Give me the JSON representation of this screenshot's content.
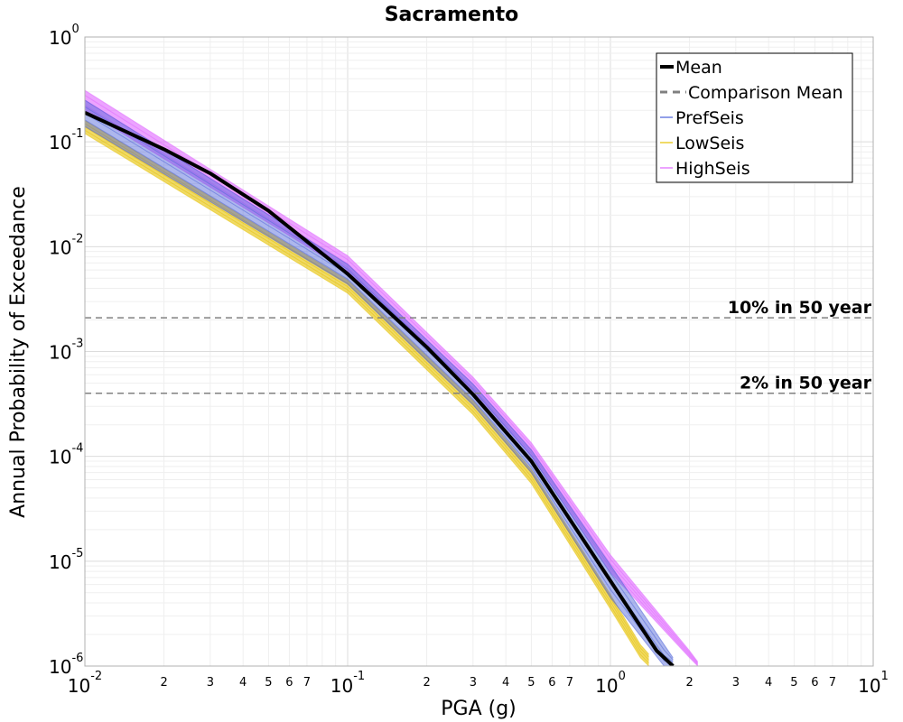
{
  "chart_data": {
    "type": "line",
    "title": "Sacramento",
    "xlabel": "PGA (g)",
    "ylabel": "Annual Probability of Exceedance",
    "x_scale": "log",
    "y_scale": "log",
    "xlim": [
      0.01,
      10
    ],
    "ylim": [
      1e-06,
      1
    ],
    "grid": true,
    "legend_position": "top-right",
    "x_major_ticks": [
      {
        "base": "10",
        "exp": "-2"
      },
      {
        "base": "10",
        "exp": "-1"
      },
      {
        "base": "10",
        "exp": "0"
      },
      {
        "base": "10",
        "exp": "1"
      }
    ],
    "y_major_ticks": [
      {
        "base": "10",
        "exp": "0"
      },
      {
        "base": "10",
        "exp": "-1"
      },
      {
        "base": "10",
        "exp": "-2"
      },
      {
        "base": "10",
        "exp": "-3"
      },
      {
        "base": "10",
        "exp": "-4"
      },
      {
        "base": "10",
        "exp": "-5"
      },
      {
        "base": "10",
        "exp": "-6"
      }
    ],
    "x_minor_tick_labels": [
      "2",
      "3",
      "4",
      "5",
      "6",
      "7"
    ],
    "series": [
      {
        "name": "Mean",
        "color": "#000000",
        "style": "solid",
        "x": [
          0.01,
          0.02,
          0.03,
          0.05,
          0.1,
          0.2,
          0.3,
          0.5,
          1.0,
          1.5,
          1.73
        ],
        "y": [
          0.19,
          0.085,
          0.05,
          0.022,
          0.0055,
          0.0011,
          0.00039,
          9e-05,
          6.5e-06,
          1.4e-06,
          1e-06
        ]
      },
      {
        "name": "Comparison Mean",
        "color": "#808080",
        "style": "dashed",
        "x": [],
        "y": []
      },
      {
        "name": "PrefSeis",
        "color": "#4a5fd8",
        "style": "band",
        "x": [
          0.01,
          0.1,
          0.3,
          0.5,
          1.0,
          1.6,
          1.73
        ],
        "y_low": [
          0.14,
          0.0044,
          0.00031,
          7e-05,
          4.5e-06,
          1e-06,
          1e-06
        ],
        "y_high": [
          0.25,
          0.0068,
          0.00049,
          0.000115,
          9.2e-06,
          1.6e-06,
          1.2e-06
        ]
      },
      {
        "name": "LowSeis",
        "color": "#e6c100",
        "style": "band",
        "x": [
          0.01,
          0.1,
          0.3,
          0.5,
          1.0,
          1.3,
          1.4
        ],
        "y_low": [
          0.12,
          0.0036,
          0.00025,
          5.5e-05,
          3.5e-06,
          1.2e-06,
          1e-06
        ],
        "y_high": [
          0.16,
          0.0048,
          0.00034,
          7.5e-05,
          4.8e-06,
          1.6e-06,
          1.3e-06
        ]
      },
      {
        "name": "HighSeis",
        "color": "#e066ff",
        "style": "band",
        "x": [
          0.01,
          0.1,
          0.3,
          0.5,
          1.0,
          2.0,
          2.15
        ],
        "y_low": [
          0.2,
          0.0058,
          0.00042,
          0.0001,
          7.8e-06,
          1.2e-06,
          1e-06
        ],
        "y_high": [
          0.31,
          0.0082,
          0.00057,
          0.000135,
          1.15e-05,
          1.4e-06,
          1.1e-06
        ]
      }
    ],
    "reference_lines": [
      {
        "label": "10% in 50 year",
        "y": 0.0021,
        "color": "#808080",
        "style": "dashed"
      },
      {
        "label": "2% in 50 year",
        "y": 0.0004,
        "color": "#808080",
        "style": "dashed"
      }
    ]
  }
}
